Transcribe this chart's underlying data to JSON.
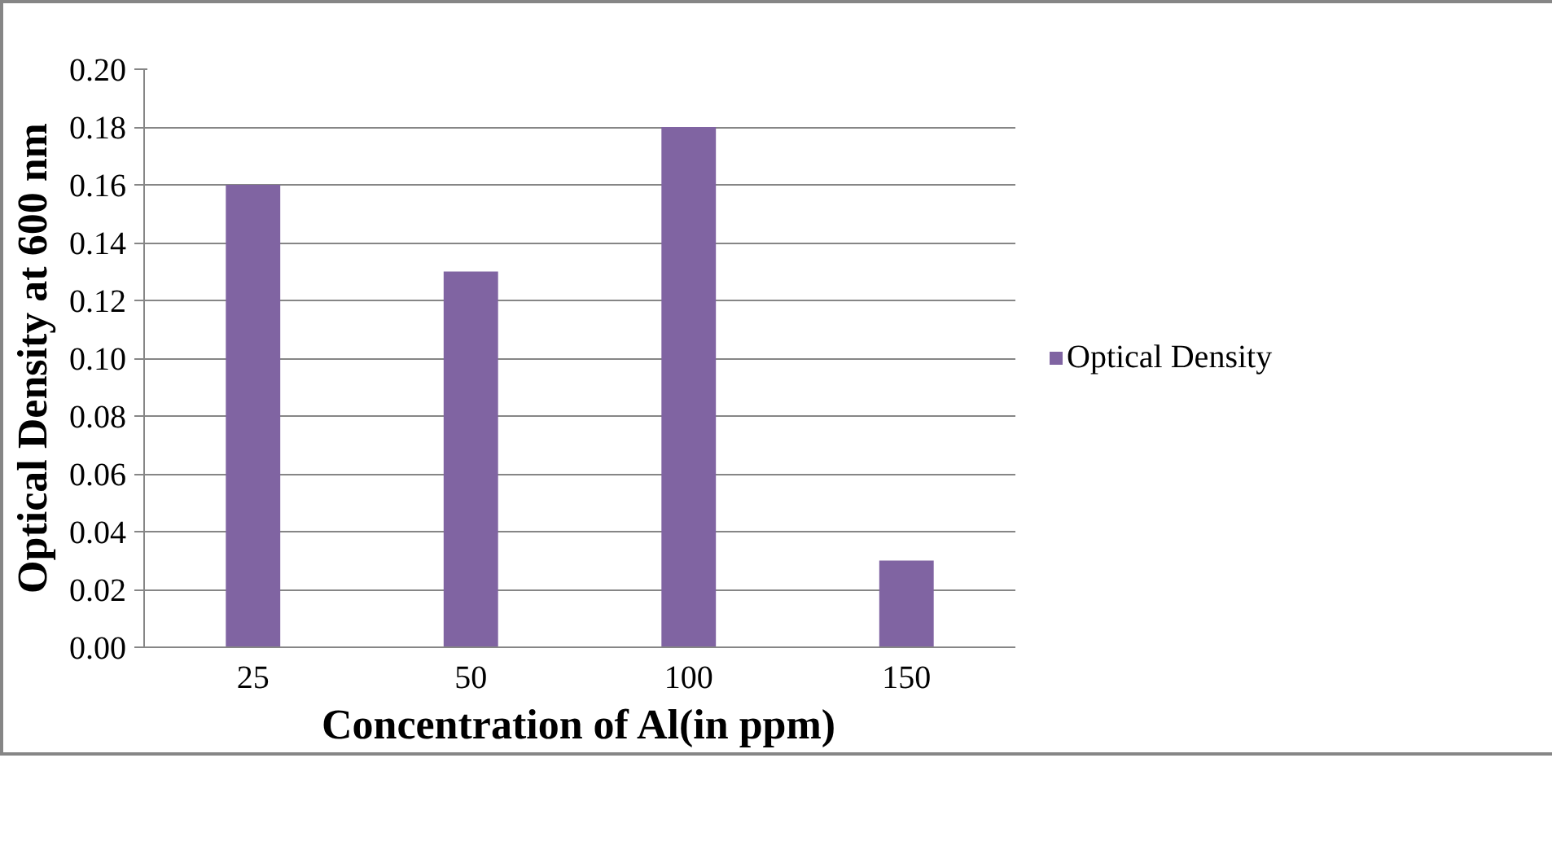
{
  "chart_data": {
    "type": "bar",
    "xlabel": "Concentration of Al(in ppm)",
    "ylabel": "Optical Density at 600 nm",
    "categories": [
      "25",
      "50",
      "100",
      "150"
    ],
    "series": [
      {
        "name": "Optical Density",
        "color": "#8064a2",
        "values": [
          0.16,
          0.13,
          0.18,
          0.03
        ]
      }
    ],
    "ylim": [
      0,
      0.2
    ],
    "yticks": [
      {
        "value": 0,
        "label": "0.00"
      },
      {
        "value": 0.02,
        "label": "0.02"
      },
      {
        "value": 0.04,
        "label": "0.04"
      },
      {
        "value": 0.06,
        "label": "0.06"
      },
      {
        "value": 0.08,
        "label": "0.08"
      },
      {
        "value": 0.1,
        "label": "0.10"
      },
      {
        "value": 0.12,
        "label": "0.12"
      },
      {
        "value": 0.14,
        "label": "0.14"
      },
      {
        "value": 0.16,
        "label": "0.16"
      },
      {
        "value": 0.18,
        "label": "0.18"
      },
      {
        "value": 0.2,
        "label": "0.20"
      }
    ],
    "grid": "y",
    "legend": "right"
  }
}
